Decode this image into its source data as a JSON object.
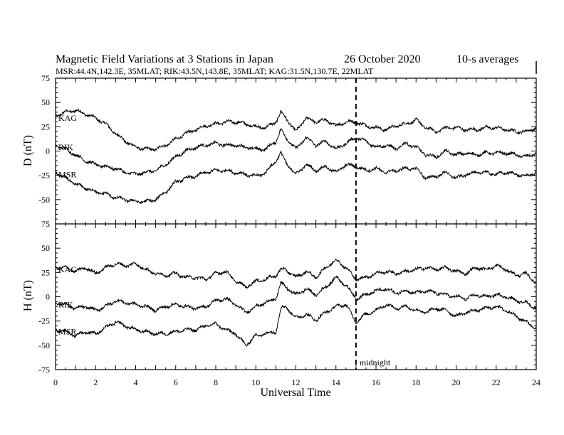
{
  "title": {
    "main": "Magnetic Field Variations at 3 Stations in Japan",
    "date": "26 October 2020",
    "averaging": "10-s averages",
    "stations_info": "MSR:44.4N,142.3E, 35MLAT;  RIK:43.5N,143.8E, 35MLAT;  KAG:31.5N,130.7E, 22MLAT"
  },
  "xlabel": "Universal Time",
  "midnight_label": "midnight",
  "chart_data": [
    {
      "type": "line",
      "panel": "D",
      "ylabel": "D (nT)",
      "ylim": [
        -75,
        75
      ],
      "yticks": [
        "75",
        "50",
        "25",
        "0",
        "-25",
        "-50",
        "-75"
      ],
      "xlim": [
        0,
        24
      ],
      "xticks": [
        "0",
        "2",
        "4",
        "6",
        "8",
        "10",
        "12",
        "14",
        "16",
        "18",
        "20",
        "22",
        "24"
      ],
      "grid": false,
      "midnight_ut": 15,
      "series": [
        {
          "name": "KAG",
          "x": [
            0,
            0.5,
            1,
            1.5,
            2,
            2.5,
            3,
            3.5,
            4,
            4.5,
            5,
            5.5,
            6,
            6.5,
            7,
            7.5,
            8,
            8.5,
            9,
            9.5,
            10,
            10.5,
            11,
            11.25,
            11.5,
            12,
            12.5,
            13,
            13.5,
            14,
            14.5,
            15,
            15.5,
            16,
            16.5,
            17,
            17.5,
            18,
            18.5,
            19,
            19.5,
            20,
            20.5,
            21,
            21.5,
            22,
            22.5,
            23,
            23.5,
            24
          ],
          "y": [
            36,
            40,
            42,
            38,
            34,
            28,
            18,
            10,
            4,
            2,
            2,
            6,
            12,
            18,
            22,
            26,
            28,
            30,
            30,
            28,
            25,
            24,
            30,
            40,
            34,
            20,
            34,
            30,
            32,
            26,
            30,
            30,
            26,
            24,
            22,
            26,
            28,
            32,
            24,
            20,
            24,
            24,
            22,
            22,
            24,
            24,
            22,
            20,
            20,
            24
          ]
        },
        {
          "name": "RIK",
          "x": [
            0,
            0.5,
            1,
            1.5,
            2,
            2.5,
            3,
            3.5,
            4,
            4.5,
            5,
            5.5,
            6,
            6.5,
            7,
            7.5,
            8,
            8.5,
            9,
            9.5,
            10,
            10.5,
            11,
            11.25,
            11.5,
            12,
            12.5,
            13,
            13.5,
            14,
            14.5,
            15,
            15.5,
            16,
            16.5,
            17,
            17.5,
            18,
            18.5,
            19,
            19.5,
            20,
            20.5,
            21,
            21.5,
            22,
            22.5,
            23,
            23.5,
            24
          ],
          "y": [
            6,
            2,
            -4,
            -10,
            -14,
            -16,
            -18,
            -22,
            -24,
            -22,
            -20,
            -14,
            -6,
            0,
            4,
            6,
            8,
            6,
            6,
            4,
            2,
            2,
            10,
            22,
            14,
            2,
            14,
            6,
            10,
            2,
            8,
            14,
            10,
            4,
            6,
            2,
            8,
            4,
            -4,
            -6,
            0,
            -4,
            -2,
            -4,
            -2,
            -2,
            -2,
            -4,
            -6,
            -2
          ]
        },
        {
          "name": "MSR",
          "x": [
            0,
            0.5,
            1,
            1.5,
            2,
            2.5,
            3,
            3.5,
            4,
            4.5,
            5,
            5.5,
            6,
            6.5,
            7,
            7.5,
            8,
            8.5,
            9,
            9.5,
            10,
            10.5,
            11,
            11.25,
            11.5,
            12,
            12.5,
            13,
            13.5,
            14,
            14.5,
            15,
            15.5,
            16,
            16.5,
            17,
            17.5,
            18,
            18.5,
            19,
            19.5,
            20,
            20.5,
            21,
            21.5,
            22,
            22.5,
            23,
            23.5,
            24
          ],
          "y": [
            -22,
            -28,
            -34,
            -38,
            -42,
            -44,
            -48,
            -50,
            -52,
            -52,
            -50,
            -42,
            -32,
            -28,
            -26,
            -22,
            -20,
            -20,
            -22,
            -24,
            -26,
            -22,
            -10,
            -2,
            -12,
            -24,
            -14,
            -20,
            -16,
            -22,
            -14,
            -16,
            -20,
            -18,
            -22,
            -20,
            -18,
            -18,
            -28,
            -26,
            -22,
            -28,
            -24,
            -22,
            -22,
            -24,
            -22,
            -24,
            -26,
            -22
          ]
        }
      ]
    },
    {
      "type": "line",
      "panel": "H",
      "ylabel": "H (nT)",
      "ylim": [
        -75,
        75
      ],
      "yticks": [
        "75",
        "50",
        "25",
        "0",
        "-25",
        "-50",
        "-75"
      ],
      "xlim": [
        0,
        24
      ],
      "xticks": [
        "0",
        "2",
        "4",
        "6",
        "8",
        "10",
        "12",
        "14",
        "16",
        "18",
        "20",
        "22",
        "24"
      ],
      "grid": false,
      "midnight_ut": 15,
      "series": [
        {
          "name": "KAG",
          "x": [
            0,
            0.5,
            1,
            1.5,
            2,
            2.5,
            3,
            3.5,
            4,
            4.5,
            5,
            5.5,
            6,
            6.5,
            7,
            7.5,
            8,
            8.5,
            9,
            9.5,
            10,
            10.5,
            11,
            11.25,
            11.5,
            12,
            12.5,
            13,
            13.5,
            14,
            14.5,
            15,
            15.5,
            16,
            16.5,
            17,
            17.5,
            18,
            18.5,
            19,
            19.5,
            20,
            20.5,
            21,
            21.5,
            22,
            22.5,
            23,
            23.5,
            24
          ],
          "y": [
            30,
            30,
            26,
            30,
            24,
            30,
            34,
            32,
            34,
            28,
            24,
            22,
            24,
            20,
            20,
            18,
            24,
            26,
            16,
            10,
            16,
            18,
            22,
            28,
            28,
            20,
            26,
            20,
            30,
            38,
            30,
            18,
            20,
            24,
            26,
            24,
            26,
            28,
            30,
            28,
            30,
            26,
            24,
            30,
            28,
            32,
            28,
            22,
            24,
            14
          ]
        },
        {
          "name": "RIK",
          "x": [
            0,
            0.5,
            1,
            1.5,
            2,
            2.5,
            3,
            3.5,
            4,
            4.5,
            5,
            5.5,
            6,
            6.5,
            7,
            7.5,
            8,
            8.5,
            9,
            9.5,
            10,
            10.5,
            11,
            11.25,
            11.5,
            12,
            12.5,
            13,
            13.5,
            14,
            14.5,
            15,
            15.5,
            16,
            16.5,
            17,
            17.5,
            18,
            18.5,
            19,
            19.5,
            20,
            20.5,
            21,
            21.5,
            22,
            22.5,
            23,
            23.5,
            24
          ],
          "y": [
            -6,
            -8,
            -12,
            -10,
            -14,
            -10,
            -4,
            -6,
            -8,
            -10,
            -14,
            -10,
            -8,
            -10,
            -12,
            -10,
            -4,
            -2,
            -8,
            -16,
            -10,
            -6,
            -2,
            14,
            10,
            2,
            8,
            2,
            10,
            20,
            12,
            -2,
            2,
            6,
            8,
            4,
            6,
            4,
            6,
            4,
            2,
            0,
            -2,
            2,
            0,
            2,
            0,
            -4,
            -6,
            -12
          ]
        },
        {
          "name": "MSR",
          "x": [
            0,
            0.5,
            1,
            1.5,
            2,
            2.5,
            3,
            3.5,
            4,
            4.5,
            5,
            5.5,
            6,
            6.5,
            7,
            7.5,
            8,
            8.5,
            9,
            9.5,
            10,
            10.5,
            11,
            11.25,
            11.5,
            12,
            12.5,
            13,
            13.5,
            14,
            14.5,
            15,
            15.5,
            16,
            16.5,
            17,
            17.5,
            18,
            18.5,
            19,
            19.5,
            20,
            20.5,
            21,
            21.5,
            22,
            22.5,
            23,
            23.5,
            24
          ],
          "y": [
            -34,
            -36,
            -40,
            -36,
            -38,
            -32,
            -26,
            -30,
            -34,
            -36,
            -38,
            -38,
            -36,
            -34,
            -34,
            -30,
            -28,
            -34,
            -38,
            -50,
            -40,
            -38,
            -36,
            -12,
            -10,
            -22,
            -18,
            -24,
            -16,
            -10,
            -8,
            -26,
            -18,
            -14,
            -8,
            -12,
            -10,
            -14,
            -16,
            -12,
            -14,
            -20,
            -16,
            -14,
            -12,
            -10,
            -14,
            -20,
            -26,
            -32
          ]
        }
      ]
    }
  ]
}
